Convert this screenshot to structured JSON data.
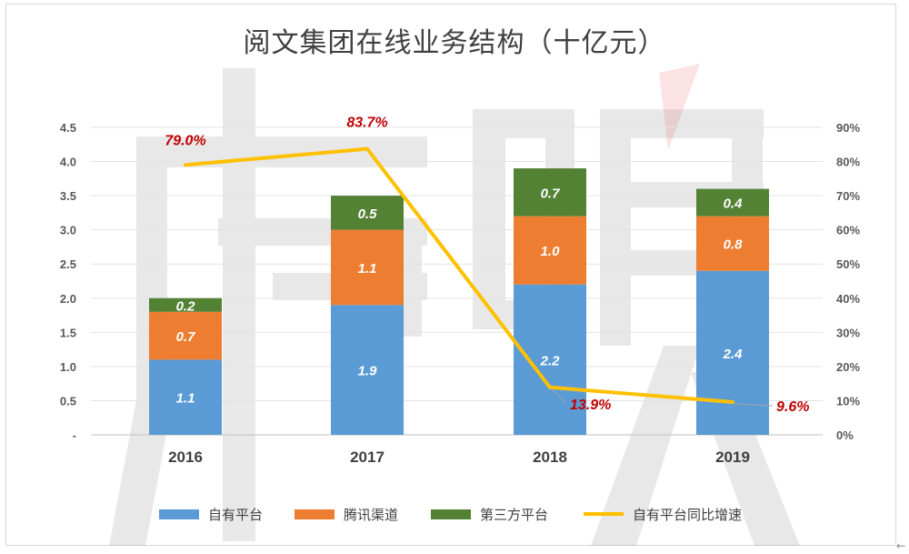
{
  "chart_data": {
    "type": "bar",
    "stacked": true,
    "title": "阅文集团在线业务结构（十亿元）",
    "categories": [
      "2016",
      "2017",
      "2018",
      "2019"
    ],
    "series": [
      {
        "name": "自有平台",
        "kind": "bar",
        "color": "#5b9bd5",
        "values": [
          1.1,
          1.9,
          2.2,
          2.4
        ]
      },
      {
        "name": "腾讯渠道",
        "kind": "bar",
        "color": "#ed7d31",
        "values": [
          0.7,
          1.1,
          1.0,
          0.8
        ]
      },
      {
        "name": "第三方平台",
        "kind": "bar",
        "color": "#548235",
        "values": [
          0.2,
          0.5,
          0.7,
          0.4
        ]
      },
      {
        "name": "自有平台同比增速",
        "kind": "line",
        "axis": "right",
        "color": "#ffc000",
        "values": [
          79.0,
          83.7,
          13.9,
          9.6
        ]
      }
    ],
    "bar_labels": [
      [
        "1.1",
        "1.9",
        "2.2",
        "2.4"
      ],
      [
        "0.7",
        "1.1",
        "1.0",
        "0.8"
      ],
      [
        "0.2",
        "0.5",
        "0.7",
        "0.4"
      ]
    ],
    "line_labels": [
      "79.0%",
      "83.7%",
      "13.9%",
      "9.6%"
    ],
    "y_left": {
      "min": 0,
      "max": 4.5,
      "ticks": [
        "-",
        "0.5",
        "1.0",
        "1.5",
        "2.0",
        "2.5",
        "3.0",
        "3.5",
        "4.0",
        "4.5"
      ]
    },
    "y_right": {
      "min": 0,
      "max": 90,
      "ticks": [
        "0%",
        "10%",
        "20%",
        "30%",
        "40%",
        "50%",
        "60%",
        "70%",
        "80%",
        "90%"
      ]
    },
    "grid": true,
    "legend_position": "bottom"
  },
  "corner_icon": "arrow-left-icon",
  "corner_glyph": "←"
}
